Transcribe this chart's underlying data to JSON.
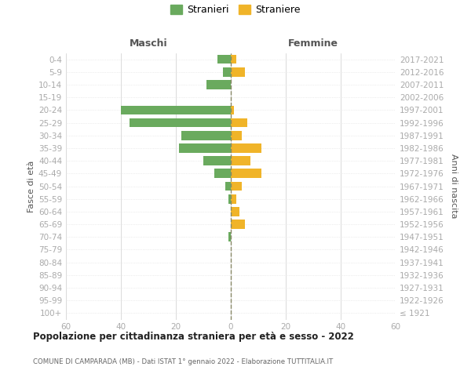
{
  "age_groups": [
    "100+",
    "95-99",
    "90-94",
    "85-89",
    "80-84",
    "75-79",
    "70-74",
    "65-69",
    "60-64",
    "55-59",
    "50-54",
    "45-49",
    "40-44",
    "35-39",
    "30-34",
    "25-29",
    "20-24",
    "15-19",
    "10-14",
    "5-9",
    "0-4"
  ],
  "birth_years": [
    "≤ 1921",
    "1922-1926",
    "1927-1931",
    "1932-1936",
    "1937-1941",
    "1942-1946",
    "1947-1951",
    "1952-1956",
    "1957-1961",
    "1962-1966",
    "1967-1971",
    "1972-1976",
    "1977-1981",
    "1982-1986",
    "1987-1991",
    "1992-1996",
    "1997-2001",
    "2002-2006",
    "2007-2011",
    "2012-2016",
    "2017-2021"
  ],
  "males": [
    0,
    0,
    0,
    0,
    0,
    0,
    1,
    0,
    0,
    1,
    2,
    6,
    10,
    19,
    18,
    37,
    40,
    0,
    9,
    3,
    5
  ],
  "females": [
    0,
    0,
    0,
    0,
    0,
    0,
    0,
    5,
    3,
    2,
    4,
    11,
    7,
    11,
    4,
    6,
    1,
    0,
    0,
    5,
    2
  ],
  "male_color": "#6aaa5e",
  "female_color": "#f0b429",
  "male_label": "Stranieri",
  "female_label": "Straniere",
  "title": "Popolazione per cittadinanza straniera per età e sesso - 2022",
  "subtitle": "COMUNE DI CAMPARADA (MB) - Dati ISTAT 1° gennaio 2022 - Elaborazione TUTTITALIA.IT",
  "xlabel_left": "Maschi",
  "xlabel_right": "Femmine",
  "ylabel_left": "Fasce di età",
  "ylabel_right": "Anni di nascita",
  "xlim": 60,
  "background_color": "#ffffff",
  "grid_color": "#cccccc",
  "grid_color_y": "#dddddd",
  "tick_color": "#aaaaaa",
  "label_color": "#555555",
  "title_color": "#222222",
  "subtitle_color": "#666666",
  "dashed_line_color": "#888866",
  "xticks": [
    -60,
    -40,
    -20,
    0,
    20,
    40,
    60
  ],
  "xtick_labels": [
    "60",
    "40",
    "20",
    "0",
    "20",
    "40",
    "60"
  ]
}
